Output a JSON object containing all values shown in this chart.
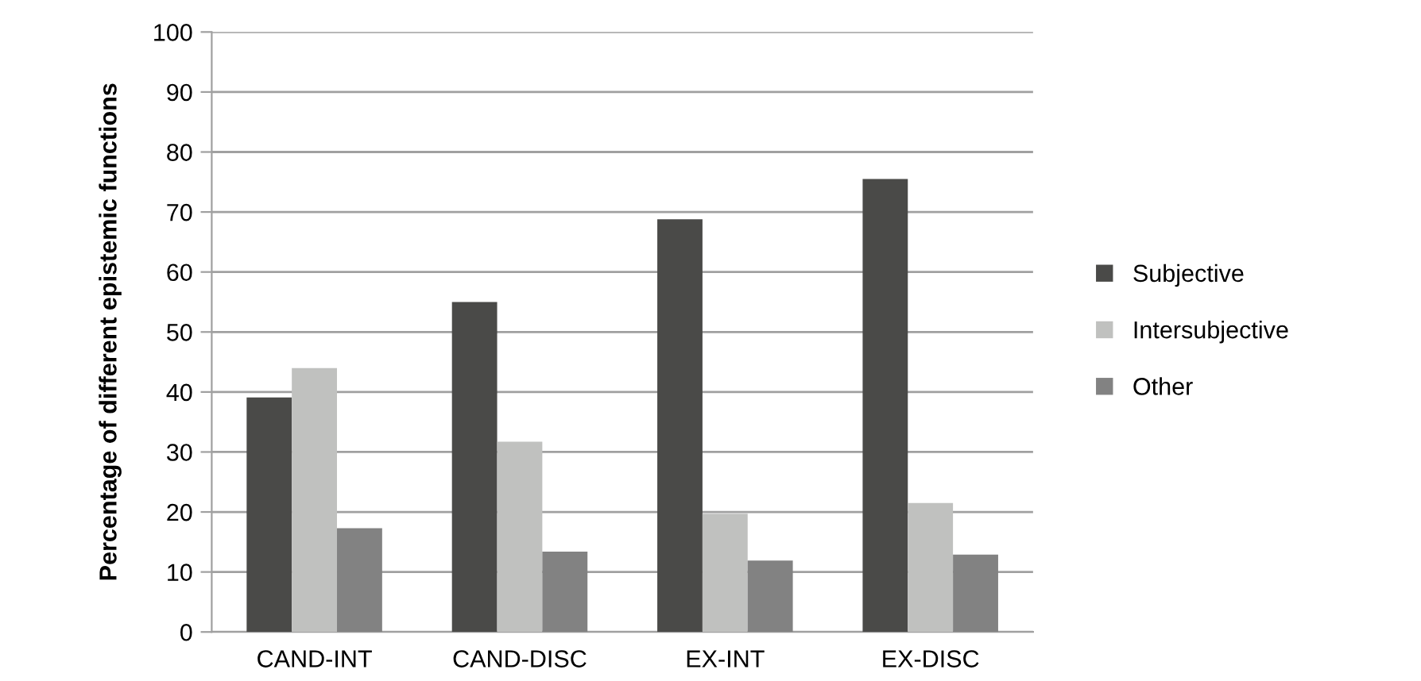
{
  "chart_data": {
    "type": "bar",
    "ylabel": "Percentage of different epistemic functions",
    "categories": [
      "CAND-INT",
      "CAND-DISC",
      "EX-INT",
      "EX-DISC"
    ],
    "series": [
      {
        "name": "Subjective",
        "color": "#4a4a48",
        "values": [
          39.1,
          55.0,
          68.8,
          75.5
        ]
      },
      {
        "name": "Intersubjective",
        "color": "#c0c1bf",
        "values": [
          44.0,
          31.7,
          19.7,
          21.5
        ]
      },
      {
        "name": "Other",
        "color": "#828282",
        "values": [
          17.3,
          13.4,
          11.9,
          12.9
        ]
      }
    ],
    "ylim": [
      0,
      100
    ],
    "yticks": [
      0,
      10,
      20,
      30,
      40,
      50,
      60,
      70,
      80,
      90,
      100
    ],
    "grid": "y",
    "legend": "right"
  }
}
